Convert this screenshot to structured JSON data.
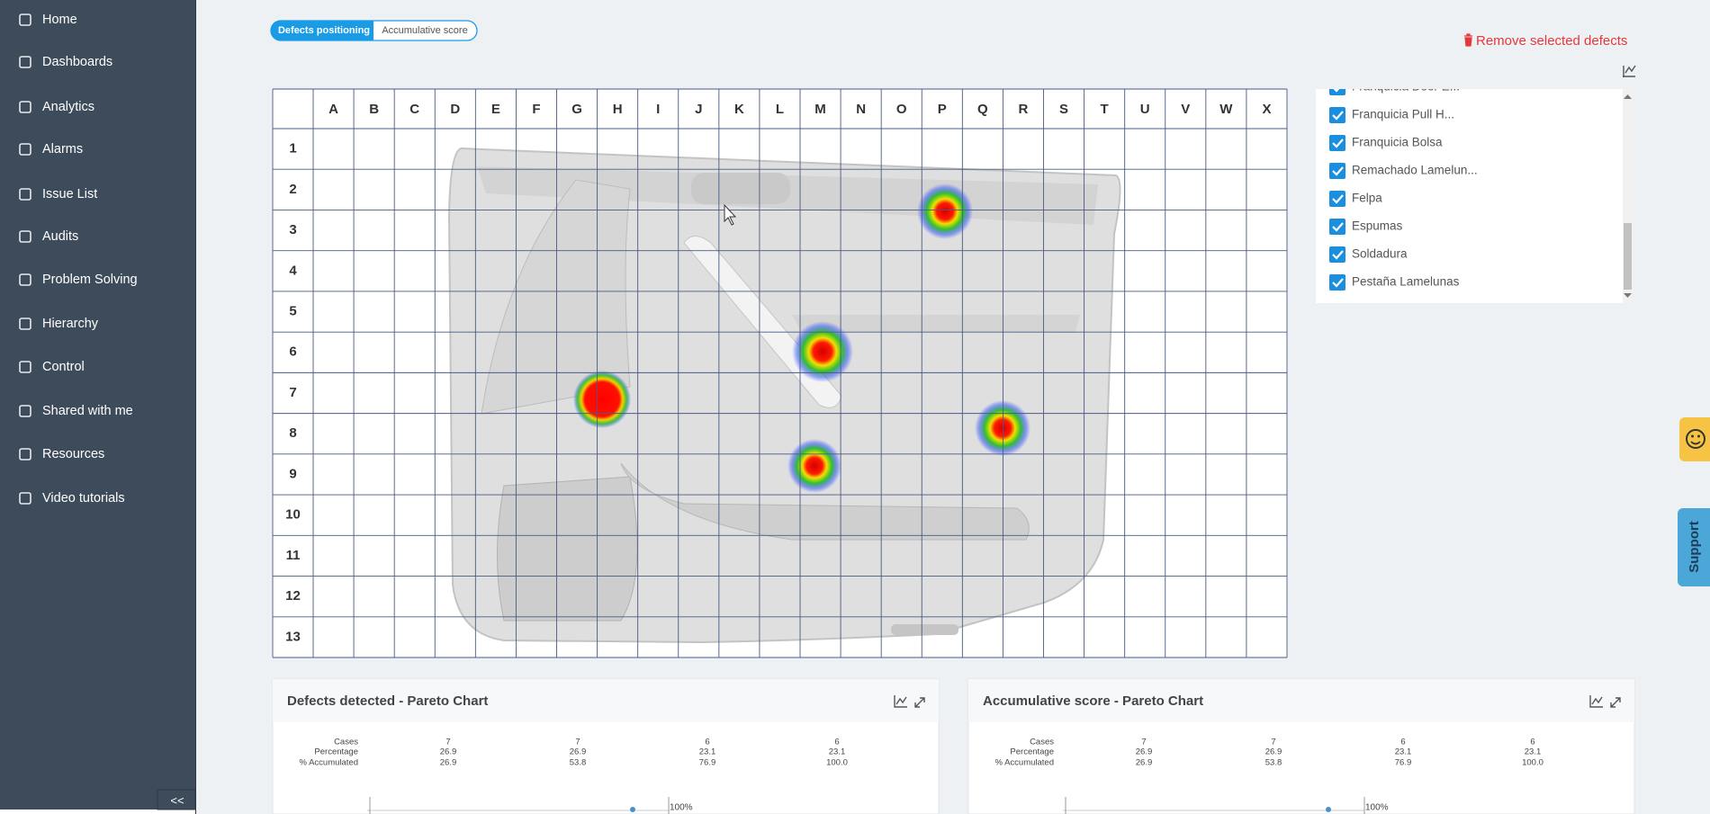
{
  "sidebar": {
    "items": [
      "Home",
      "Dashboards",
      "Analytics",
      "Alarms",
      "Issue List",
      "Audits",
      "Problem Solving",
      "Hierarchy",
      "Control",
      "Shared with me",
      "Resources",
      "Video tutorials"
    ],
    "collapse": "<<"
  },
  "tabs": [
    "Defects positioning",
    "Accumulative score"
  ],
  "remove_button": "Remove selected defects",
  "grid": {
    "columns": [
      "A",
      "B",
      "C",
      "D",
      "E",
      "F",
      "G",
      "H",
      "I",
      "J",
      "K",
      "L",
      "M",
      "N",
      "O",
      "P",
      "Q",
      "R",
      "S",
      "T",
      "U",
      "V",
      "W",
      "X"
    ],
    "rows": [
      1,
      2,
      3,
      4,
      5,
      6,
      7,
      8,
      9,
      10,
      11,
      12,
      13
    ]
  },
  "defect_list": [
    "Franquicia Door E...",
    "Franquicia Pull H...",
    "Franquicia Bolsa",
    "Remachado Lamelun...",
    "Felpa",
    "Espumas",
    "Soldadura",
    "Pestaña Lamelunas"
  ],
  "panels": [
    {
      "title": "Defects detected - Pareto Chart",
      "table": {
        "labels": [
          "Cases",
          "Percentage",
          "% Accumulated"
        ],
        "columns": [
          [
            "7",
            "26.9",
            "26.9"
          ],
          [
            "7",
            "26.9",
            "53.8"
          ],
          [
            "6",
            "23.1",
            "76.9"
          ],
          [
            "6",
            "23.1",
            "100.0"
          ]
        ]
      },
      "axis_label": "100%"
    },
    {
      "title": "Accumulative score - Pareto Chart",
      "table": {
        "labels": [
          "Cases",
          "Percentage",
          "% Accumulated"
        ],
        "columns": [
          [
            "7",
            "26.9",
            "26.9"
          ],
          [
            "7",
            "26.9",
            "53.8"
          ],
          [
            "6",
            "23.1",
            "76.9"
          ],
          [
            "6",
            "23.1",
            "100.0"
          ]
        ]
      },
      "axis_label": "100%"
    }
  ],
  "support": "Support"
}
